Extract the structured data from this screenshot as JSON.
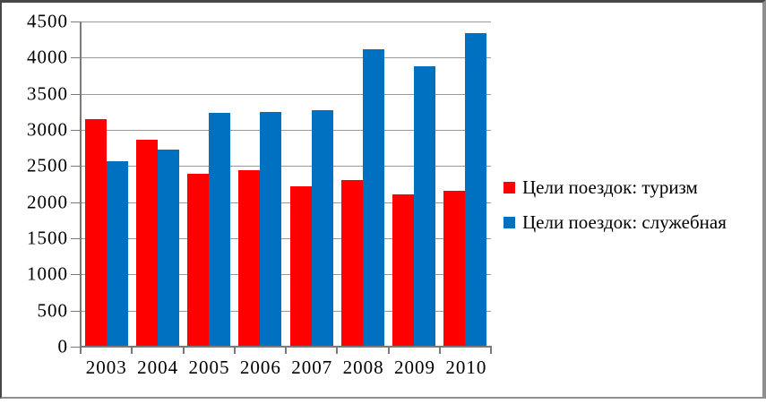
{
  "colors": {
    "series_tourism": "#ff0000",
    "series_business": "#0070c0",
    "gridline": "#9a9a9a",
    "axis": "#7a7a7a",
    "tick": "#7a7a7a",
    "text": "#000000",
    "frame_dark": "#474747",
    "frame_light": "#8f8f8f",
    "background": "#ffffff"
  },
  "chart_data": {
    "type": "bar",
    "title": "",
    "xlabel": "",
    "ylabel": "",
    "categories": [
      "2003",
      "2004",
      "2005",
      "2006",
      "2007",
      "2008",
      "2009",
      "2010"
    ],
    "series": [
      {
        "name": "Цели поездок: туризм",
        "color": "#ff0000",
        "values": [
          3150,
          2870,
          2395,
          2445,
          2225,
          2305,
          2105,
          2160
        ]
      },
      {
        "name": "Цели поездок: служебная",
        "color": "#0070c0",
        "values": [
          2570,
          2730,
          3230,
          3245,
          3275,
          4110,
          3880,
          4345
        ]
      }
    ],
    "ylim": [
      0,
      4500
    ],
    "y_ticks": [
      0,
      500,
      1000,
      1500,
      2000,
      2500,
      3000,
      3500,
      4000,
      4500
    ],
    "grid": true,
    "legend_position": "right"
  }
}
